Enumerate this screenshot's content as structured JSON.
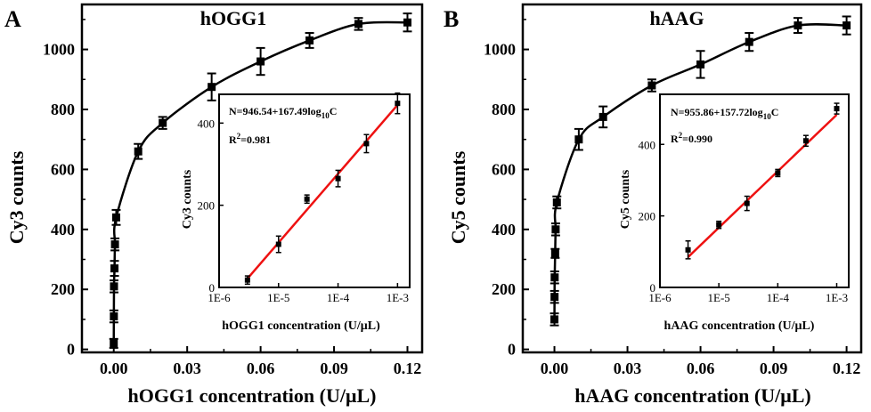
{
  "chart_data": [
    {
      "panel": "A",
      "type": "line",
      "title": "hOGG1",
      "xlabel": "hOGG1 concentration (U/μL)",
      "ylabel": "Cy3 counts",
      "xlim": [
        -0.013,
        0.126
      ],
      "ylim": [
        -10,
        1150
      ],
      "xticks": [
        "0.00",
        "0.03",
        "0.06",
        "0.09",
        "0.12"
      ],
      "yticks": [
        "0",
        "200",
        "400",
        "600",
        "800",
        "1000"
      ],
      "points": [
        {
          "x": 0.0,
          "y": 20,
          "err": 15
        },
        {
          "x": 5e-05,
          "y": 110,
          "err": 20
        },
        {
          "x": 0.0001,
          "y": 210,
          "err": 20
        },
        {
          "x": 0.0003,
          "y": 270,
          "err": 25
        },
        {
          "x": 0.0005,
          "y": 350,
          "err": 20
        },
        {
          "x": 0.001,
          "y": 440,
          "err": 25
        },
        {
          "x": 0.01,
          "y": 660,
          "err": 25
        },
        {
          "x": 0.02,
          "y": 755,
          "err": 20
        },
        {
          "x": 0.04,
          "y": 875,
          "err": 45
        },
        {
          "x": 0.06,
          "y": 960,
          "err": 45
        },
        {
          "x": 0.08,
          "y": 1030,
          "err": 25
        },
        {
          "x": 0.1,
          "y": 1085,
          "err": 20
        },
        {
          "x": 0.12,
          "y": 1090,
          "err": 30
        }
      ],
      "inset": {
        "type": "scatter",
        "xlabel": "hOGG1 concentration (U/μL)",
        "ylabel": "Cy3 counts",
        "xscale": "log",
        "xlim": [
          1e-06,
          0.0016
        ],
        "ylim": [
          0,
          470
        ],
        "xticks": [
          "1E-6",
          "1E-5",
          "1E-4",
          "1E-3"
        ],
        "yticks": [
          "0",
          "200",
          "400"
        ],
        "equation_lines": [
          "N=946.54+167.49log",
          "10",
          "C"
        ],
        "r2_lines": [
          "R",
          "2",
          "=0.981"
        ],
        "fit_line_color": "#ee1111",
        "points": [
          {
            "x": 3e-06,
            "y": 18,
            "err": 10
          },
          {
            "x": 1e-05,
            "y": 105,
            "err": 20
          },
          {
            "x": 3e-05,
            "y": 215,
            "err": 10
          },
          {
            "x": 0.0001,
            "y": 265,
            "err": 20
          },
          {
            "x": 0.0003,
            "y": 350,
            "err": 22
          },
          {
            "x": 0.001,
            "y": 448,
            "err": 25
          }
        ],
        "fit": {
          "intercept": 946.54,
          "slope": 167.49,
          "x_from": 3e-06,
          "x_to": 0.001
        }
      }
    },
    {
      "panel": "B",
      "type": "line",
      "title": "hAAG",
      "xlabel": "hAAG concentration (U/μL)",
      "ylabel": "Cy5 counts",
      "xlim": [
        -0.013,
        0.126
      ],
      "ylim": [
        -10,
        1150
      ],
      "xticks": [
        "0.00",
        "0.03",
        "0.06",
        "0.09",
        "0.12"
      ],
      "yticks": [
        "0",
        "200",
        "400",
        "600",
        "800",
        "1000"
      ],
      "points": [
        {
          "x": 0.0,
          "y": 100,
          "err": 20
        },
        {
          "x": 5e-05,
          "y": 175,
          "err": 20
        },
        {
          "x": 0.0001,
          "y": 240,
          "err": 20
        },
        {
          "x": 0.0003,
          "y": 320,
          "err": 15
        },
        {
          "x": 0.0005,
          "y": 400,
          "err": 20
        },
        {
          "x": 0.001,
          "y": 490,
          "err": 20
        },
        {
          "x": 0.01,
          "y": 700,
          "err": 35
        },
        {
          "x": 0.02,
          "y": 775,
          "err": 35
        },
        {
          "x": 0.04,
          "y": 880,
          "err": 20
        },
        {
          "x": 0.06,
          "y": 950,
          "err": 45
        },
        {
          "x": 0.08,
          "y": 1025,
          "err": 30
        },
        {
          "x": 0.1,
          "y": 1080,
          "err": 25
        },
        {
          "x": 0.12,
          "y": 1080,
          "err": 30
        }
      ],
      "inset": {
        "type": "scatter",
        "xlabel": "hAAG concentration (U/μL)",
        "ylabel": "Cy5 counts",
        "xscale": "log",
        "xlim": [
          1e-06,
          0.0016
        ],
        "ylim": [
          0,
          540
        ],
        "xticks": [
          "1E-6",
          "1E-5",
          "1E-4",
          "1E-3"
        ],
        "yticks": [
          "0",
          "200",
          "400"
        ],
        "equation_lines": [
          "N=955.86+157.72log",
          "10",
          "C"
        ],
        "r2_lines": [
          "R",
          "2",
          "=0.990"
        ],
        "fit_line_color": "#ee1111",
        "points": [
          {
            "x": 3e-06,
            "y": 105,
            "err": 25
          },
          {
            "x": 1e-05,
            "y": 175,
            "err": 10
          },
          {
            "x": 3e-05,
            "y": 235,
            "err": 20
          },
          {
            "x": 0.0001,
            "y": 320,
            "err": 10
          },
          {
            "x": 0.0003,
            "y": 410,
            "err": 15
          },
          {
            "x": 0.001,
            "y": 500,
            "err": 15
          }
        ],
        "fit": {
          "intercept": 955.86,
          "slope": 157.72,
          "x_from": 3e-06,
          "x_to": 0.001
        }
      }
    }
  ]
}
